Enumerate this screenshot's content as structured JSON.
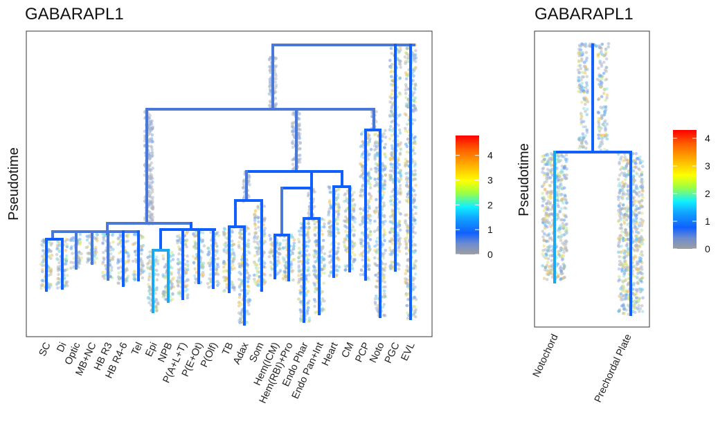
{
  "chart_data": [
    {
      "type": "scatter",
      "title": "GABARAPL1",
      "xlabel": "",
      "ylabel": "Pseudotime",
      "x_categories": [
        "SC",
        "Di",
        "Optic",
        "MB+NC",
        "HB R3",
        "HB R4-6",
        "Tel",
        "Epi",
        "NPB",
        "P(A+L+T)",
        "P(E+Ot)",
        "P(Olf)",
        "TB",
        "Adax",
        "Som",
        "Hem(ICM)",
        "Hem(RBI)+Pro",
        "Endo Phar",
        "Endo Pan+Int",
        "Heart",
        "CM",
        "PCP",
        "Noto",
        "PGC",
        "EVL"
      ],
      "color_scale": {
        "label": "",
        "min": 0,
        "max": 4.8,
        "ticks": [
          0,
          1,
          2,
          3,
          4
        ]
      },
      "grid": false
    },
    {
      "type": "scatter",
      "title": "GABARAPL1",
      "xlabel": "",
      "ylabel": "Pseudotime",
      "x_categories": [
        "Notochord",
        "Prechordal Plate"
      ],
      "color_scale": {
        "label": "",
        "min": 0,
        "max": 4.3,
        "ticks": [
          0,
          1,
          2,
          3,
          4
        ]
      },
      "grid": false
    }
  ],
  "colors": {
    "gradient": [
      "#9e9e9e",
      "#5f86d6",
      "#1060ff",
      "#10a0ff",
      "#10f0ff",
      "#a0ff40",
      "#ffff00",
      "#ffb000",
      "#ff6000",
      "#ff0000"
    ],
    "tree": "#4a78d8",
    "tree_bright": "#1060ff",
    "tree_cyan": "#1aa8f0",
    "point": "#b8b8b8"
  }
}
